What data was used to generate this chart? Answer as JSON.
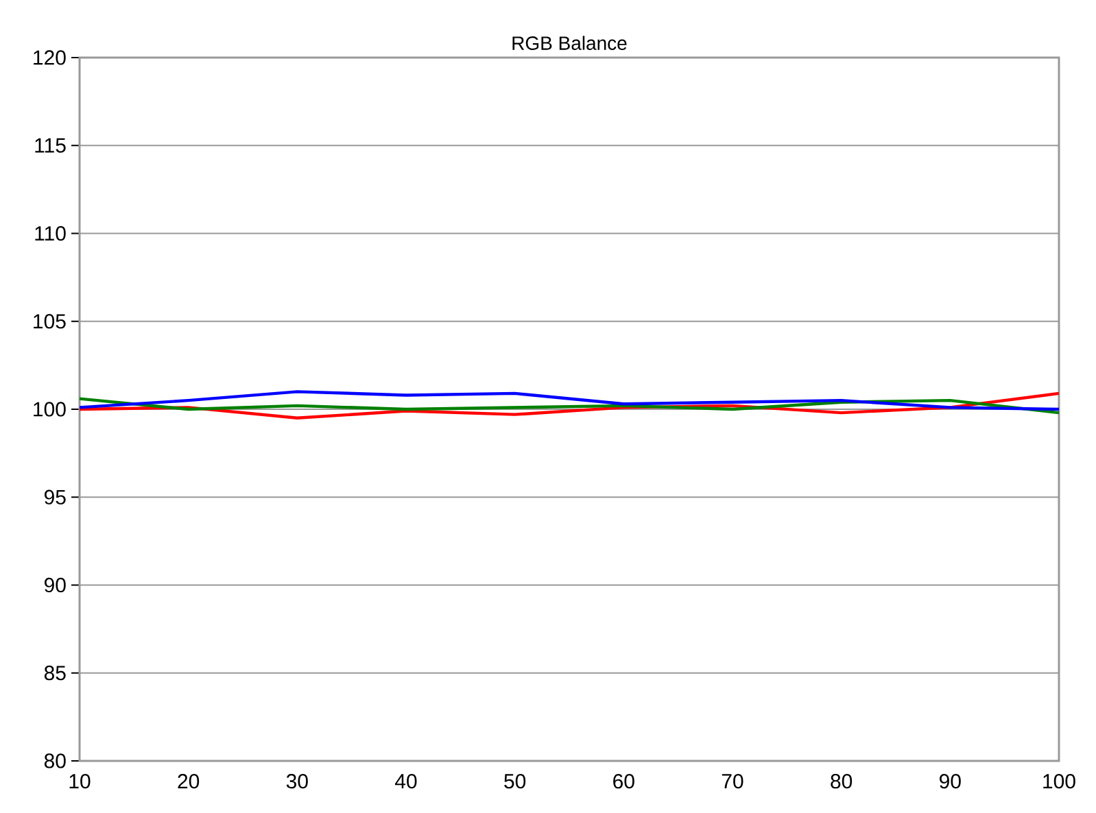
{
  "chart_data": {
    "type": "line",
    "title": "RGB Balance",
    "x": [
      10,
      20,
      30,
      40,
      50,
      60,
      70,
      80,
      90,
      100
    ],
    "series": [
      {
        "color": "#ff0000",
        "values": [
          100.0,
          100.1,
          99.5,
          99.9,
          99.7,
          100.1,
          100.2,
          99.8,
          100.1,
          100.9
        ]
      },
      {
        "color": "#008000",
        "values": [
          100.6,
          100.0,
          100.2,
          100.0,
          100.1,
          100.2,
          100.0,
          100.4,
          100.5,
          99.8
        ]
      },
      {
        "color": "#0000ff",
        "values": [
          100.1,
          100.5,
          101.0,
          100.8,
          100.9,
          100.3,
          100.4,
          100.5,
          100.1,
          100.0
        ]
      }
    ],
    "xlim": [
      10,
      100
    ],
    "xticks": [
      10,
      20,
      30,
      40,
      50,
      60,
      70,
      80,
      90,
      100
    ],
    "ylim": [
      80,
      120
    ],
    "yticks": [
      80,
      85,
      90,
      95,
      100,
      105,
      110,
      115,
      120
    ],
    "grid": "y",
    "marker": "none",
    "line_style": "solid"
  }
}
